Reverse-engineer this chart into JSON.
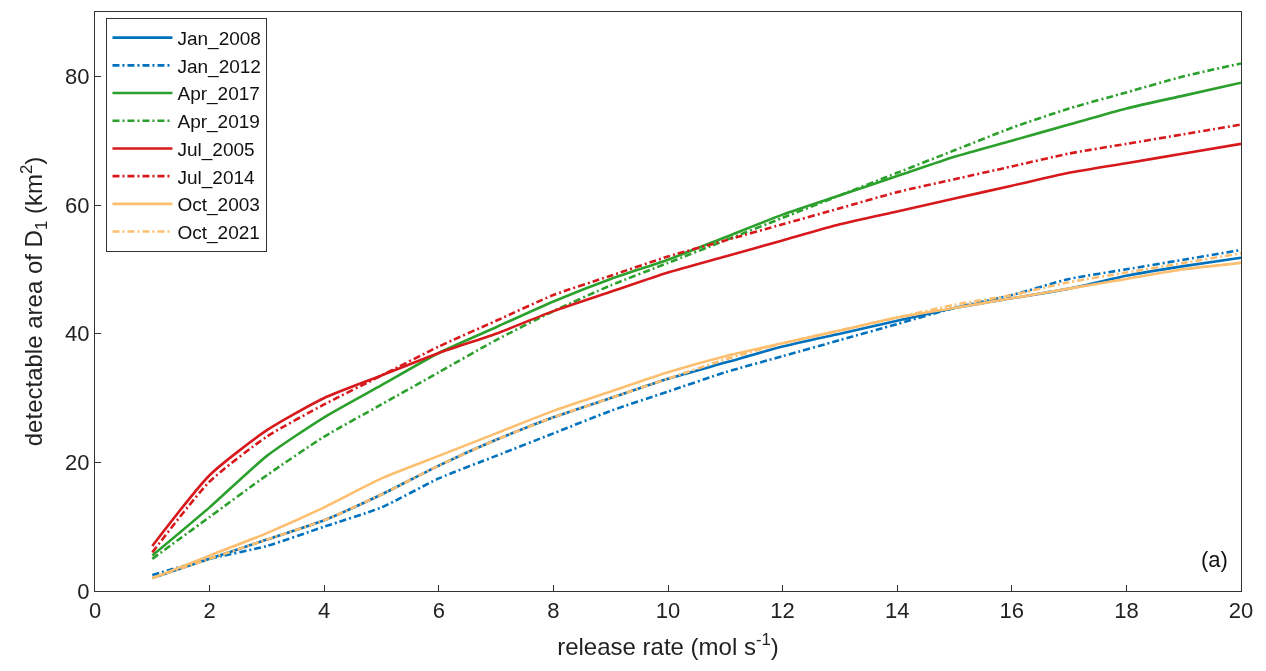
{
  "chart_data": {
    "type": "line",
    "xlabel": "release rate (mol s$^{-1}$)",
    "ylabel": "detectable area of D$_{1}$ (km$^{2}$)",
    "x": [
      1,
      2,
      3,
      4,
      5,
      6,
      7,
      8,
      9,
      10,
      11,
      12,
      13,
      14,
      15,
      16,
      17,
      18,
      19,
      20
    ],
    "xlim": [
      0,
      20
    ],
    "xticks": [
      0,
      2,
      4,
      6,
      8,
      10,
      12,
      14,
      16,
      18,
      20
    ],
    "ylim": [
      0,
      90
    ],
    "yticks": [
      0,
      20,
      40,
      60,
      80
    ],
    "legend": "top left",
    "marker": "none",
    "annotations": [
      "(a)"
    ],
    "series": [
      {
        "name": "Jan_2008",
        "color": "#0072bd",
        "line_style": "solid",
        "values": [
          2,
          5,
          8,
          11,
          15,
          19.5,
          23.5,
          27,
          30,
          33,
          35.5,
          38,
          40,
          42,
          44,
          45.5,
          47,
          49,
          50.5,
          51.8
        ]
      },
      {
        "name": "Jan_2012",
        "color": "#0072bd",
        "line_style": "dashed",
        "values": [
          2.5,
          5,
          7,
          10,
          13,
          17.5,
          21,
          24.5,
          28,
          31,
          34,
          36.5,
          39,
          41.5,
          44,
          46,
          48.5,
          50,
          51.5,
          53
        ]
      },
      {
        "name": "Apr_2017",
        "color": "#2ca02c",
        "line_style": "solid",
        "values": [
          5.5,
          13,
          21,
          27,
          32,
          37,
          41,
          45,
          48.5,
          51.5,
          55,
          58.5,
          61.5,
          64.5,
          67.5,
          70,
          72.5,
          75,
          77,
          79
        ]
      },
      {
        "name": "Apr_2019",
        "color": "#2ca02c",
        "line_style": "dashed",
        "values": [
          5,
          11.5,
          18,
          24,
          29,
          34,
          39,
          43.5,
          47.5,
          51,
          54.5,
          58,
          61.5,
          65,
          68.5,
          72,
          75,
          77.5,
          80,
          82
        ]
      },
      {
        "name": "Jul_2005",
        "color": "#d7191c",
        "line_style": "solid",
        "values": [
          7,
          18,
          25,
          30,
          33.5,
          37,
          40,
          43.5,
          46.5,
          49.5,
          52,
          54.5,
          57,
          59,
          61,
          63,
          65,
          66.5,
          68,
          69.5
        ]
      },
      {
        "name": "Jul_2014",
        "color": "#d7191c",
        "line_style": "dashed",
        "values": [
          6,
          17,
          24,
          29,
          33.5,
          38,
          42,
          46,
          49,
          52,
          54.5,
          57,
          59.5,
          62,
          64,
          66,
          68,
          69.5,
          71,
          72.5
        ]
      },
      {
        "name": "Oct_2003",
        "color": "#fdbf6f",
        "line_style": "solid",
        "values": [
          2,
          5.5,
          9,
          13,
          17.5,
          21,
          24.5,
          28,
          31,
          34,
          36.5,
          38.5,
          40.5,
          42.5,
          44,
          45.5,
          47,
          48.5,
          50,
          51
        ]
      },
      {
        "name": "Oct_2021",
        "color": "#fdbf6f",
        "line_style": "dashed",
        "values": [
          2,
          5,
          8,
          11,
          15,
          19.5,
          23.5,
          27,
          30,
          33,
          36,
          38.5,
          40.5,
          42.5,
          44.5,
          46,
          48,
          49.5,
          51,
          52.5
        ]
      }
    ]
  }
}
